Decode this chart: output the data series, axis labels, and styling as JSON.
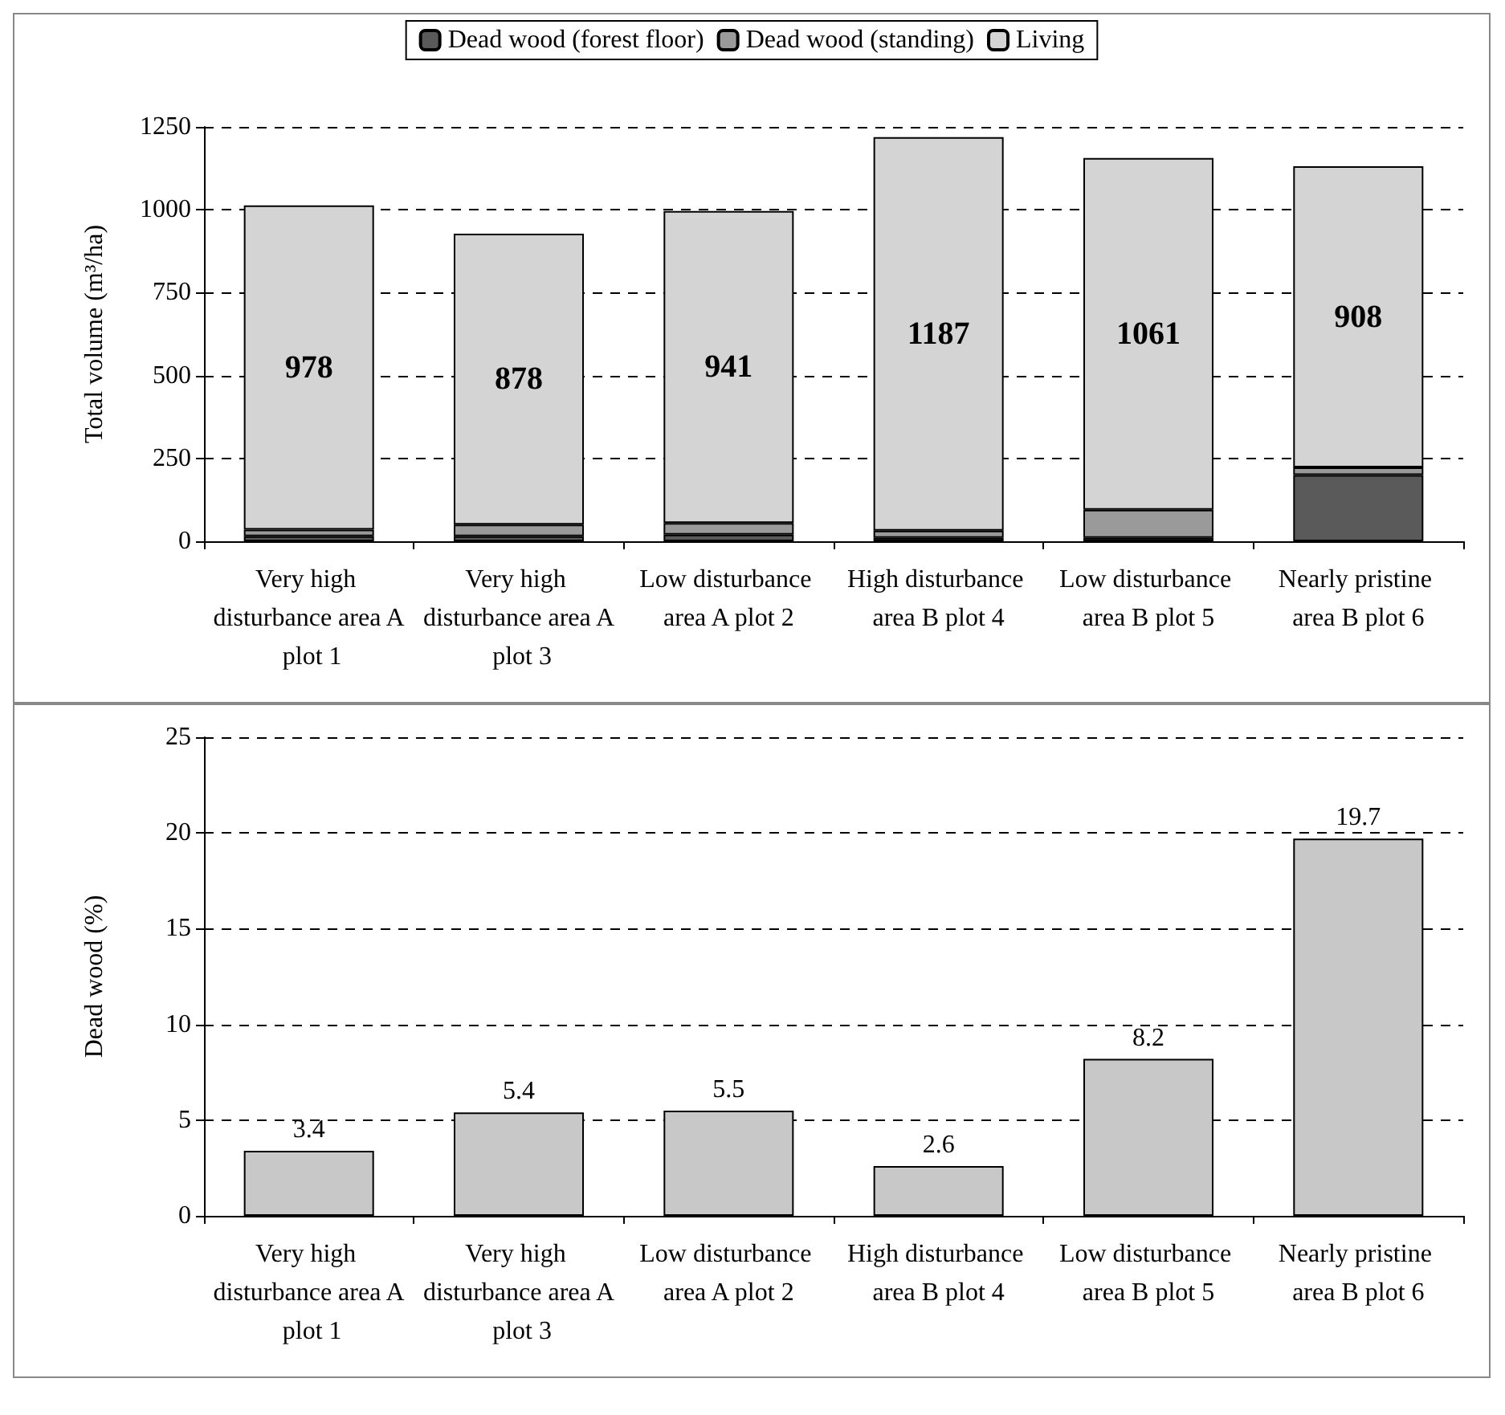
{
  "chart_data": [
    {
      "type": "bar",
      "stacked": true,
      "ylabel": "Total volume (m³/ha)",
      "categories": [
        "Very high disturbance area A plot 1",
        "Very high disturbance area A plot 3",
        "Low disturbance area A plot 2",
        "High disturbance area B plot 4",
        "Low disturbance area B plot 5",
        "Nearly pristine area B plot 6"
      ],
      "series": [
        {
          "name": "Dead wood (forest floor)",
          "color": "#5a5a5a",
          "values": [
            15,
            15,
            20,
            10,
            10,
            200
          ]
        },
        {
          "name": "Dead wood (standing)",
          "color": "#9a9a9a",
          "values": [
            20,
            35,
            35,
            22,
            85,
            23
          ]
        },
        {
          "name": "Living",
          "color": "#d4d4d4",
          "values": [
            978,
            878,
            941,
            1187,
            1061,
            908
          ],
          "value_labels": [
            "978",
            "878",
            "941",
            "1187",
            "1061",
            "908"
          ]
        }
      ],
      "ylim": [
        0,
        1250
      ],
      "yticks": [
        0,
        250,
        500,
        750,
        1000,
        1250
      ],
      "grid": "y",
      "legend": "top"
    },
    {
      "type": "bar",
      "ylabel": "Dead wood (%)",
      "categories": [
        "Very high disturbance area A plot 1",
        "Very high disturbance area A plot 3",
        "Low disturbance area A plot 2",
        "High disturbance area B plot 4",
        "Low disturbance area B plot 5",
        "Nearly pristine area B plot 6"
      ],
      "values": [
        3.4,
        5.4,
        5.5,
        2.6,
        8.2,
        19.7
      ],
      "color": "#c8c8c8",
      "data_labels": true,
      "ylim": [
        0,
        25
      ],
      "yticks": [
        0,
        5,
        10,
        15,
        20,
        25
      ],
      "grid": "y"
    }
  ]
}
